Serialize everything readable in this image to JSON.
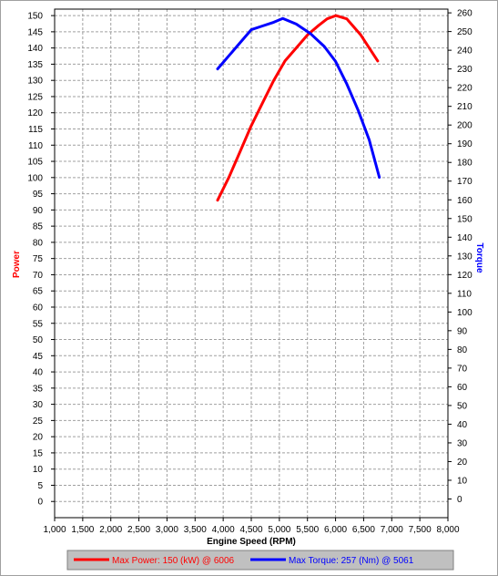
{
  "chart_data": {
    "type": "line",
    "xlabel": "Engine Speed (RPM)",
    "ylabel_left": "Power",
    "ylabel_right": "Torque",
    "xlim": [
      1000,
      8000
    ],
    "ylim_left": [
      -5,
      152
    ],
    "ylim_right": [
      -10,
      262
    ],
    "xticks": [
      1000,
      1500,
      2000,
      2500,
      3000,
      3500,
      4000,
      4500,
      5000,
      5500,
      6000,
      6500,
      7000,
      7500,
      8000
    ],
    "xtick_labels": [
      "1,000",
      "1,500",
      "2,000",
      "2,500",
      "3,000",
      "3,500",
      "4,000",
      "4,500",
      "5,000",
      "5,500",
      "6,000",
      "6,500",
      "7,000",
      "7,500",
      "8,000"
    ],
    "yticks_left": [
      0,
      5,
      10,
      15,
      20,
      25,
      30,
      35,
      40,
      45,
      50,
      55,
      60,
      65,
      70,
      75,
      80,
      85,
      90,
      95,
      100,
      105,
      110,
      115,
      120,
      125,
      130,
      135,
      140,
      145,
      150
    ],
    "yticks_right": [
      0,
      10,
      20,
      30,
      40,
      50,
      60,
      70,
      80,
      90,
      100,
      110,
      120,
      130,
      140,
      150,
      160,
      170,
      180,
      190,
      200,
      210,
      220,
      230,
      240,
      250,
      260
    ],
    "grid": true,
    "legend_position": "bottom",
    "series": [
      {
        "name": "Max Power: 150 (kW) @ 6006",
        "axis": "left",
        "color": "#ff0000",
        "x": [
          3900,
          4100,
          4300,
          4500,
          4700,
          4900,
          5100,
          5300,
          5500,
          5700,
          5850,
          6006,
          6200,
          6450,
          6750
        ],
        "values": [
          93,
          100,
          108,
          116,
          123,
          130,
          136,
          140,
          144,
          147,
          149,
          150,
          149,
          144,
          136
        ]
      },
      {
        "name": "Max Torque: 257 (Nm) @ 5061",
        "axis": "right",
        "color": "#0000ff",
        "x": [
          3900,
          4100,
          4300,
          4500,
          4700,
          4900,
          5061,
          5300,
          5550,
          5800,
          6000,
          6200,
          6400,
          6600,
          6780
        ],
        "values": [
          230,
          237,
          244,
          251,
          253,
          255,
          257,
          254,
          249,
          242,
          234,
          222,
          208,
          192,
          172
        ]
      }
    ]
  }
}
